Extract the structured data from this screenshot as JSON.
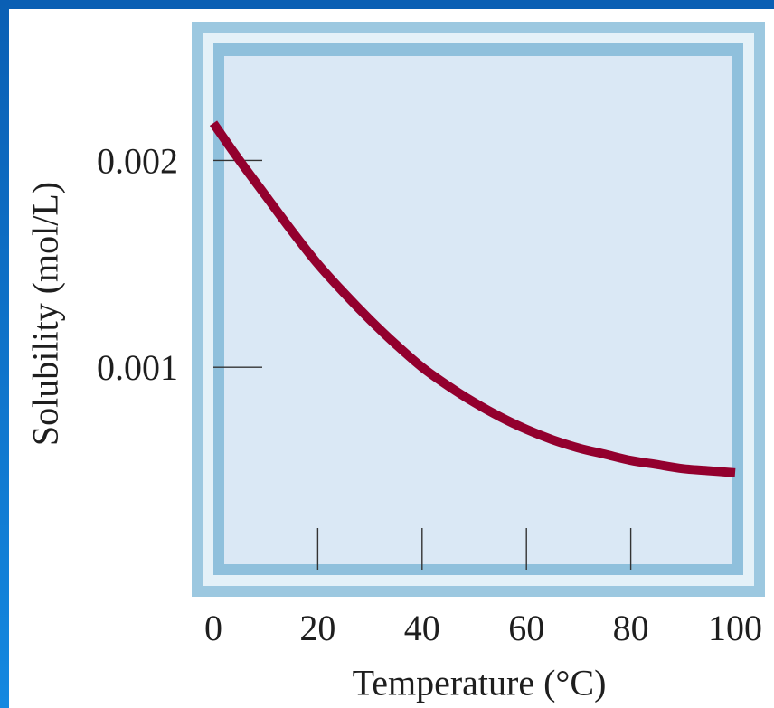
{
  "chart_data": {
    "type": "line",
    "xlabel": "Temperature (°C)",
    "ylabel": "Solubility (mol/L)",
    "xlim": [
      0,
      100
    ],
    "ylim": [
      0,
      0.0025
    ],
    "x_ticks": [
      "0",
      "20",
      "40",
      "60",
      "80",
      "100"
    ],
    "y_ticks": [
      "0.001",
      "0.002"
    ],
    "grid": false,
    "series": [
      {
        "color": "#93002e",
        "x": [
          0,
          5,
          10,
          15,
          20,
          25,
          30,
          35,
          40,
          45,
          50,
          55,
          60,
          65,
          70,
          75,
          80,
          85,
          90,
          95,
          100
        ],
        "y": [
          0.00218,
          0.002,
          0.00183,
          0.00166,
          0.0015,
          0.00136,
          0.00123,
          0.00111,
          0.001,
          0.00091,
          0.00083,
          0.00076,
          0.0007,
          0.00065,
          0.00061,
          0.00058,
          0.00055,
          0.00053,
          0.00051,
          0.0005,
          0.00049
        ]
      }
    ]
  },
  "colors": {
    "frame": "#9cc8e0",
    "plot_background": "#dae8f5",
    "curve": "#93002e",
    "edge": "#0a5fb4"
  }
}
